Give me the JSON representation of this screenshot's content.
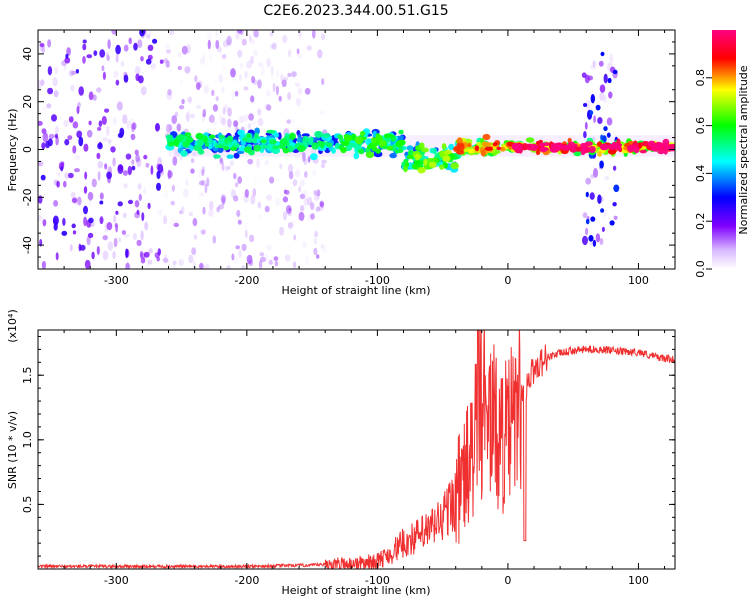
{
  "title": "C2E6.2023.344.00.51.G15",
  "chart_data": [
    {
      "type": "heatmap",
      "xlabel": "Height of straight line (km)",
      "ylabel": "Frequency (Hz)",
      "xlim": [
        -360,
        128
      ],
      "ylim": [
        -50,
        50
      ],
      "xticks": [
        -300,
        -200,
        -100,
        0,
        100
      ],
      "yticks": [
        -40,
        -20,
        0,
        20,
        40
      ],
      "colorbar": {
        "label": "Normalized spectral amplitude",
        "range": [
          0,
          1
        ],
        "ticks": [
          0.0,
          0.2,
          0.4,
          0.6,
          0.8
        ],
        "colormap": [
          "#ffffff",
          "#8000ff",
          "#0000ff",
          "#00ffff",
          "#00ff00",
          "#ffff00",
          "#ff0000",
          "#ff0080"
        ]
      },
      "features": [
        {
          "x_start": -360,
          "x_end": -140,
          "freq_center": 0,
          "freq_spread": 50,
          "amplitude": 0.15
        },
        {
          "x_start": -260,
          "x_end": -130,
          "freq_center": 3,
          "freq_spread": 4,
          "amplitude": 0.45
        },
        {
          "x_start": -130,
          "x_end": -80,
          "freq_center": 3,
          "freq_spread": 5,
          "amplitude": 0.5
        },
        {
          "x_start": -80,
          "x_end": -40,
          "freq_center": -4,
          "freq_spread": 5,
          "amplitude": 0.55
        },
        {
          "x_start": -40,
          "x_end": 0,
          "freq_center": 1,
          "freq_spread": 3,
          "amplitude": 0.7
        },
        {
          "x_start": 0,
          "x_end": 128,
          "freq_center": 1,
          "freq_spread": 2,
          "amplitude": 0.85
        },
        {
          "x_start": 58,
          "x_end": 85,
          "freq_center": 0,
          "freq_spread": 40,
          "amplitude": 0.2
        }
      ]
    },
    {
      "type": "line",
      "xlabel": "Height of straight line (km)",
      "ylabel": "SNR (10 * v/v)",
      "y_multiplier": "(x10⁴)",
      "xlim": [
        -360,
        128
      ],
      "ylim": [
        0,
        1.85
      ],
      "xticks": [
        -300,
        -200,
        -100,
        0,
        100
      ],
      "yticks": [
        0.5,
        1.0,
        1.5
      ],
      "ytick_labels": [
        "0.5",
        "1.0",
        "1.5"
      ],
      "color": "#f03030",
      "series": [
        {
          "x": [
            -360,
            -300,
            -250,
            -200,
            -150,
            -120,
            -100,
            -90,
            -80,
            -70,
            -60,
            -50,
            -40,
            -30,
            -25,
            -20,
            -15,
            -10,
            -5,
            0,
            5,
            10,
            15,
            20,
            25,
            30,
            40,
            50,
            60,
            70,
            80,
            90,
            100,
            110,
            120,
            128
          ],
          "values": [
            0.02,
            0.02,
            0.02,
            0.02,
            0.03,
            0.04,
            0.06,
            0.12,
            0.2,
            0.25,
            0.3,
            0.4,
            0.55,
            0.8,
            1.0,
            1.15,
            1.2,
            1.1,
            1.0,
            1.05,
            1.15,
            1.3,
            1.45,
            1.55,
            1.6,
            1.64,
            1.67,
            1.69,
            1.7,
            1.7,
            1.69,
            1.68,
            1.68,
            1.65,
            1.63,
            1.62
          ]
        }
      ]
    }
  ]
}
